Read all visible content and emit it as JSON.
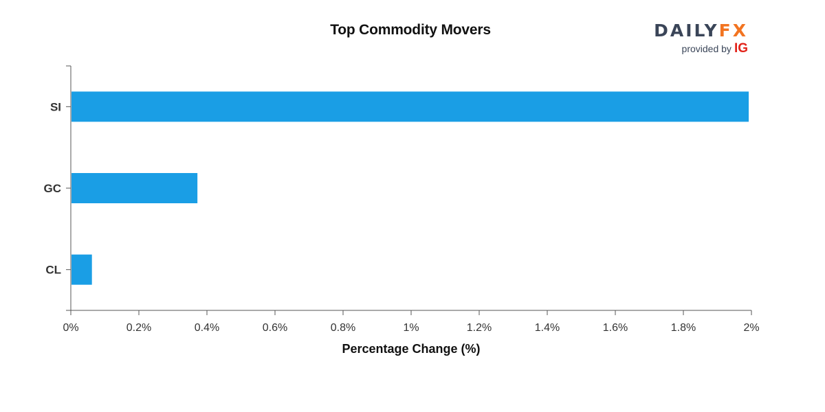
{
  "logo": {
    "brand_part1": "DAILY",
    "brand_part2": "FX",
    "provided_by": "provided by",
    "partner": "IG",
    "colors": {
      "brand_dark": "#3a4558",
      "brand_orange": "#f27421",
      "partner_red": "#e2231a"
    }
  },
  "chart_data": {
    "type": "bar",
    "orientation": "horizontal",
    "title": "Top Commodity Movers",
    "xlabel": "Percentage Change (%)",
    "ylabel": "",
    "categories": [
      "SI",
      "GC",
      "CL"
    ],
    "values": [
      1.99,
      0.37,
      0.06
    ],
    "xlim": [
      0,
      2
    ],
    "x_ticks": [
      0,
      0.2,
      0.4,
      0.6,
      0.8,
      1,
      1.2,
      1.4,
      1.6,
      1.8,
      2
    ],
    "x_tick_labels": [
      "0%",
      "0.2%",
      "0.4%",
      "0.6%",
      "0.8%",
      "1%",
      "1.2%",
      "1.4%",
      "1.6%",
      "1.8%",
      "2%"
    ],
    "bar_color": "#1a9ee5",
    "axis_color": "#555555",
    "grid": false,
    "legend": "none"
  }
}
